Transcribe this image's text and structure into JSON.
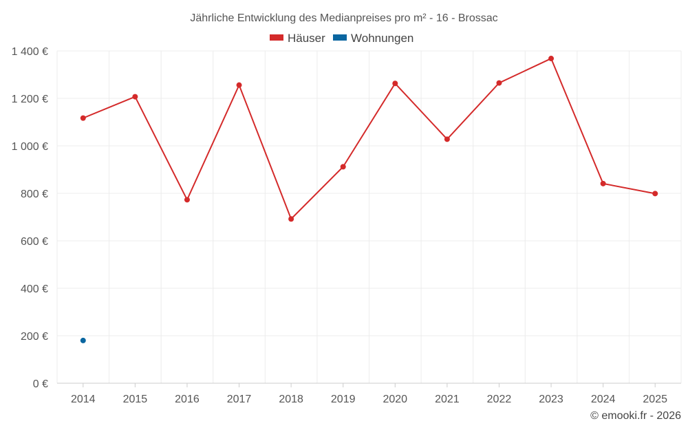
{
  "chart_data": {
    "type": "line",
    "title": "Jährliche Entwicklung des Medianpreises pro m² - 16 - Brossac",
    "x": [
      "2014",
      "2015",
      "2016",
      "2017",
      "2018",
      "2019",
      "2020",
      "2021",
      "2022",
      "2023",
      "2024",
      "2025"
    ],
    "series": [
      {
        "name": "Häuser",
        "color": "#d42a2a",
        "values": [
          1117,
          1207,
          773,
          1256,
          692,
          912,
          1263,
          1028,
          1265,
          1368,
          841,
          799
        ]
      },
      {
        "name": "Wohnungen",
        "color": "#0a66a0",
        "values": [
          180,
          null,
          null,
          null,
          null,
          null,
          null,
          null,
          null,
          null,
          null,
          null
        ]
      }
    ],
    "ylim": [
      0,
      1400
    ],
    "yticks": [
      0,
      200,
      400,
      600,
      800,
      1000,
      1200,
      1400
    ],
    "ytick_labels": [
      "0 €",
      "200 €",
      "400 €",
      "600 €",
      "800 €",
      "1 000 €",
      "1 200 €",
      "1 400 €"
    ],
    "grid": true,
    "legend_position": "top-center"
  },
  "credit": "© emooki.fr - 2026"
}
